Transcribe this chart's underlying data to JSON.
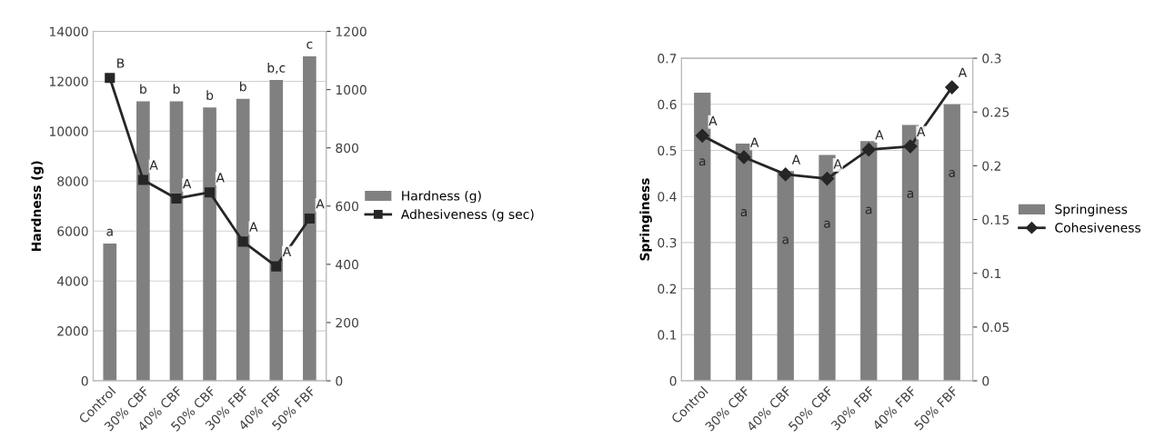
{
  "chart_data": [
    {
      "type": "bar",
      "categories": [
        "Control",
        "30% CBF",
        "40% CBF",
        "50% CBF",
        "30% FBF",
        "40% FBF",
        "50% FBF"
      ],
      "ylabel": "Hardness (g)",
      "ylim": [
        0,
        14000
      ],
      "yticks": [
        0,
        2000,
        4000,
        6000,
        8000,
        10000,
        12000,
        14000
      ],
      "y2lim": [
        0,
        1200
      ],
      "y2ticks": [
        0,
        200,
        400,
        600,
        800,
        1000,
        1200
      ],
      "grid": "y",
      "legend": "right",
      "series": [
        {
          "name": "Hardness (g)",
          "color": "#808080",
          "values": [
            5500,
            11200,
            11200,
            10950,
            11300,
            12050,
            13000
          ],
          "value_labels": [
            "a",
            "b",
            "b",
            "b",
            "b",
            "b,c",
            "c"
          ]
        },
        {
          "name": "Adhesiveness (g sec)",
          "type": "line",
          "axis": "y2",
          "color": "#262626",
          "marker": "square",
          "values": [
            1040,
            690,
            626,
            647,
            478,
            393,
            557
          ],
          "value_labels": [
            "B",
            "A",
            "A",
            "A",
            "A",
            "A",
            "A"
          ]
        }
      ]
    },
    {
      "type": "bar",
      "categories": [
        "Control",
        "30% CBF",
        "40% CBF",
        "50% CBF",
        "30% FBF",
        "40% FBF",
        "50% FBF"
      ],
      "ylabel": "Springiness",
      "ylim": [
        0,
        0.7
      ],
      "yticks": [
        0,
        0.1,
        0.2,
        0.3,
        0.4,
        0.5,
        0.6,
        0.7
      ],
      "y2lim": [
        0,
        0.3
      ],
      "y2ticks": [
        0,
        0.05,
        0.1,
        0.15,
        0.2,
        0.25,
        0.3
      ],
      "grid": "y",
      "legend": "right",
      "series": [
        {
          "name": "Springiness",
          "color": "#808080",
          "values": [
            0.625,
            0.515,
            0.455,
            0.49,
            0.52,
            0.555,
            0.6
          ],
          "value_labels": [
            "a",
            "a",
            "a",
            "a",
            "a",
            "a",
            "a"
          ]
        },
        {
          "name": "Cohesiveness",
          "type": "line",
          "axis": "y2",
          "color": "#262626",
          "marker": "diamond",
          "values": [
            0.228,
            0.208,
            0.192,
            0.188,
            0.215,
            0.218,
            0.273
          ],
          "value_labels": [
            "A",
            "A",
            "A",
            "A",
            "A",
            "A",
            "A"
          ]
        }
      ]
    }
  ]
}
